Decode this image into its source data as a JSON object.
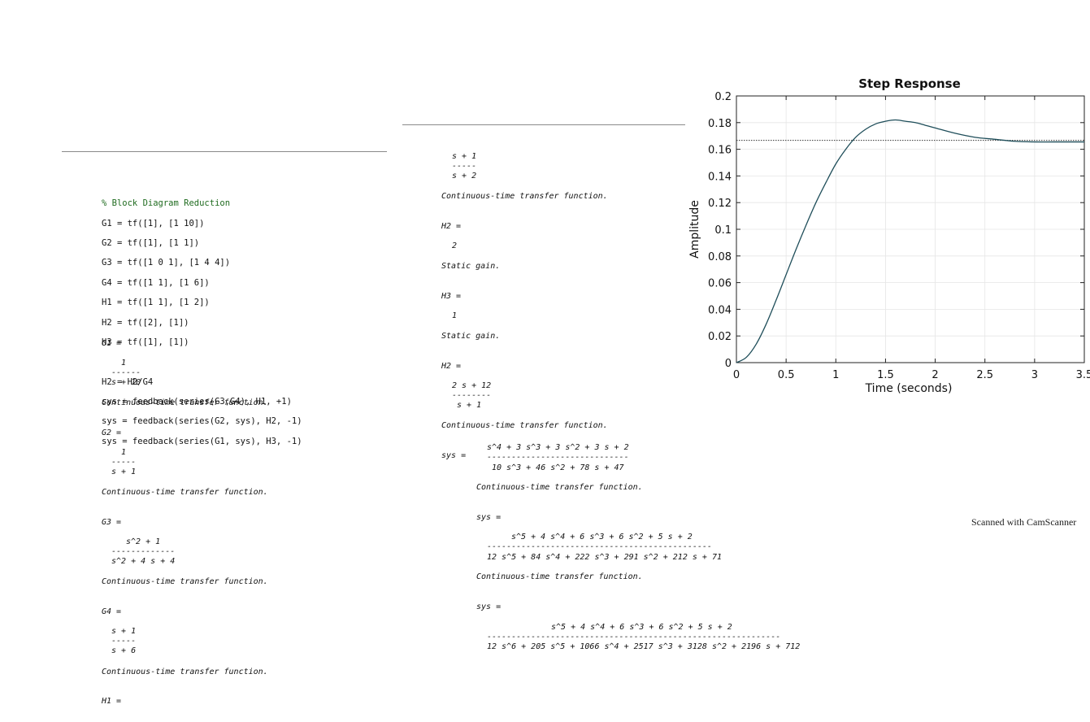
{
  "code": {
    "comment": "% Block Diagram Reduction",
    "lines1": [
      "G1 = tf([1], [1 10])",
      "G2 = tf([1], [1 1])",
      "G3 = tf([1 0 1], [1 4 4])",
      "G4 = tf([1 1], [1 6])",
      "H1 = tf([1 1], [1 2])",
      "H2 = tf([2], [1])",
      "H3 = tf([1], [1])"
    ],
    "lines2": [
      "H2 = H2/G4",
      "sys = feedback(series(G3,G4), H1, +1)",
      "sys = feedback(series(G2, sys), H2, -1)",
      "sys = feedback(series(G1, sys), H3, -1)"
    ]
  },
  "left_output": {
    "g1": {
      "label": "G1 =",
      "num": "1",
      "bar": "------",
      "den": "s + 10",
      "note": "Continuous-time transfer function."
    },
    "g2": {
      "label": "G2 =",
      "num": "1",
      "bar": "-----",
      "den": "s + 1",
      "note": "Continuous-time transfer function."
    },
    "g3": {
      "label": "G3 =",
      "num": "s^2 + 1",
      "bar": "-------------",
      "den": "s^2 + 4 s + 4",
      "note": "Continuous-time transfer function."
    },
    "g4": {
      "label": "G4 =",
      "num": "s + 1",
      "bar": "-----",
      "den": "s + 6",
      "note": "Continuous-time transfer function."
    },
    "h1": {
      "label": "H1 ="
    }
  },
  "middle_output": {
    "h1_cont": {
      "num": "s + 1",
      "bar": "-----",
      "den": "s + 2",
      "note": "Continuous-time transfer function."
    },
    "h2": {
      "label": "H2 =",
      "value": "2",
      "note": "Static gain."
    },
    "h3": {
      "label": "H3 =",
      "value": "1",
      "note": "Static gain."
    },
    "h2b": {
      "label": "H2 =",
      "num": "2 s + 12",
      "bar": "--------",
      "den": "s + 1",
      "note": "Continuous-time transfer function."
    },
    "sys1": {
      "label": "sys =",
      "num": "s^4 + 3 s^3 + 3 s^2 + 3 s + 2",
      "bar": "-----------------------------",
      "den": "10 s^3 + 46 s^2 + 78 s + 47",
      "note": "Continuous-time transfer function."
    },
    "sys2": {
      "label": "sys =",
      "num": "s^5 + 4 s^4 + 6 s^3 + 6 s^2 + 5 s + 2",
      "bar": "----------------------------------------------",
      "den": "12 s^5 + 84 s^4 + 222 s^3 + 291 s^2 + 212 s + 71",
      "note": "Continuous-time transfer function."
    },
    "sys3": {
      "label": "sys =",
      "num": "s^5 + 4 s^4 + 6 s^3 + 6 s^2 + 5 s + 2",
      "bar": "------------------------------------------------------------",
      "den": "12 s^6 + 205 s^5 + 1066 s^4 + 2517 s^3 + 3128 s^2 + 2196 s + 712"
    }
  },
  "stamp": "Scanned with CamScanner",
  "chart_data": {
    "type": "line",
    "title": "Step Response",
    "xlabel": "Time (seconds)",
    "ylabel": "Amplitude",
    "xlim": [
      0,
      3.5
    ],
    "ylim": [
      0,
      0.2
    ],
    "xticks": [
      "0",
      "0.5",
      "1",
      "1.5",
      "2",
      "2.5",
      "3",
      "3.5"
    ],
    "yticks": [
      "0",
      "0.02",
      "0.04",
      "0.06",
      "0.08",
      "0.1",
      "0.12",
      "0.14",
      "0.16",
      "0.18",
      "0.2"
    ],
    "grid": true,
    "steady_state": 0.1667,
    "series": [
      {
        "x": [
          0,
          0.1,
          0.2,
          0.3,
          0.4,
          0.5,
          0.6,
          0.7,
          0.8,
          0.9,
          1.0,
          1.1,
          1.2,
          1.3,
          1.4,
          1.5,
          1.6,
          1.7,
          1.8,
          1.9,
          2.0,
          2.2,
          2.4,
          2.6,
          2.8,
          3.0,
          3.2,
          3.5
        ],
        "y": [
          0,
          0.004,
          0.014,
          0.029,
          0.047,
          0.066,
          0.085,
          0.103,
          0.12,
          0.135,
          0.149,
          0.16,
          0.169,
          0.175,
          0.179,
          0.181,
          0.182,
          0.181,
          0.18,
          0.178,
          0.176,
          0.172,
          0.169,
          0.1675,
          0.166,
          0.1655,
          0.1655,
          0.1655
        ]
      }
    ]
  }
}
